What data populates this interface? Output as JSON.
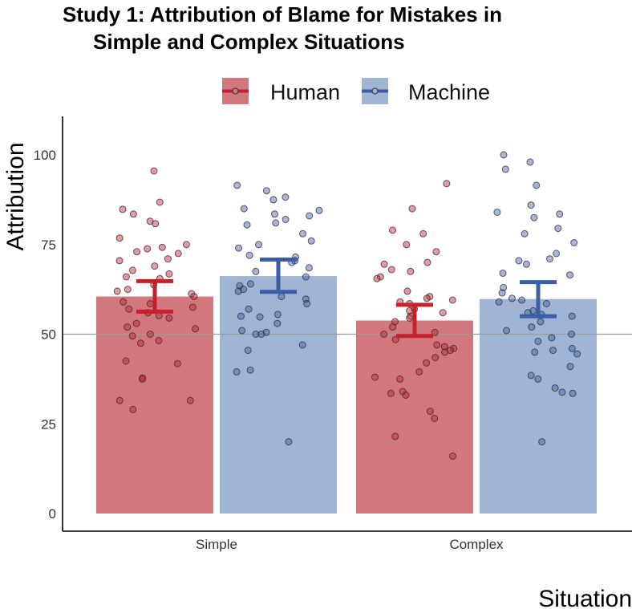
{
  "chart_data": {
    "type": "bar",
    "title": "Study 1: Attribution of Blame for Mistakes in Simple and Complex Situations",
    "title_lines": [
      "Study 1: Attribution of Blame for Mistakes in",
      "Simple and Complex Situations"
    ],
    "xlabel": "Situation",
    "ylabel": "Attribution",
    "categories": [
      "Simple",
      "Complex"
    ],
    "ylim": [
      0,
      100
    ],
    "yticks": [
      0,
      25,
      50,
      75,
      100
    ],
    "reference_line": 50,
    "legend_position": "top",
    "grid": false,
    "series": [
      {
        "name": "Human",
        "color": "#C8202A",
        "fill": "#D2777E",
        "values": [
          60.5,
          53.8
        ],
        "error_low": [
          56.3,
          49.5
        ],
        "error_high": [
          64.8,
          58.2
        ],
        "points": [
          [
            95.5,
            86.8,
            84.8,
            83.5,
            81.5,
            80.8,
            76.8,
            75.0,
            74.2,
            73.8,
            73.0,
            72.5,
            71.0,
            70.5,
            69.0,
            67.8,
            66.8,
            66.0,
            65.5,
            63.8,
            62.5,
            62.0,
            61.3,
            60.5,
            59.0,
            58.5,
            57.5,
            57.0,
            56.0,
            55.2,
            54.5,
            53.0,
            52.0,
            51.5,
            50.0,
            49.5,
            48.2,
            47.5,
            42.5,
            41.8,
            37.8,
            37.5,
            31.5,
            31.5,
            29.0
          ],
          [
            92.0,
            85.0,
            79.0,
            78.0,
            75.0,
            73.0,
            70.0,
            69.5,
            68.0,
            67.5,
            66.0,
            65.5,
            62.0,
            60.5,
            60.0,
            59.5,
            59.0,
            58.5,
            57.0,
            56.5,
            56.0,
            55.0,
            54.5,
            53.5,
            52.0,
            50.5,
            50.0,
            48.5,
            47.0,
            46.5,
            46.0,
            45.5,
            45.0,
            43.5,
            42.0,
            39.5,
            38.0,
            37.5,
            34.0,
            33.5,
            33.0,
            28.5,
            26.5,
            21.5,
            16.0
          ]
        ]
      },
      {
        "name": "Machine",
        "color": "#3A5DA8",
        "fill": "#A0B4D6",
        "values": [
          66.2,
          59.8
        ],
        "error_low": [
          61.8,
          55.0
        ],
        "error_high": [
          70.8,
          64.5
        ],
        "points": [
          [
            91.5,
            90.0,
            88.2,
            87.5,
            85.0,
            84.5,
            83.5,
            83.0,
            82.0,
            81.0,
            80.5,
            78.0,
            76.0,
            75.0,
            74.0,
            72.0,
            71.5,
            70.5,
            70.0,
            68.5,
            67.5,
            66.0,
            64.0,
            63.5,
            62.5,
            62.0,
            60.5,
            59.8,
            58.5,
            57.0,
            55.5,
            55.0,
            54.8,
            53.0,
            51.0,
            50.5,
            50.0,
            50.0,
            47.0,
            45.5,
            40.0,
            39.5,
            20.0
          ],
          [
            100.0,
            98.0,
            96.0,
            91.5,
            86.0,
            84.0,
            83.5,
            82.5,
            79.5,
            78.0,
            75.5,
            72.5,
            71.0,
            70.5,
            69.5,
            67.0,
            66.5,
            63.0,
            61.5,
            60.0,
            59.5,
            59.0,
            58.5,
            56.5,
            56.0,
            55.5,
            55.0,
            53.5,
            52.0,
            51.0,
            50.0,
            49.0,
            48.0,
            46.0,
            45.5,
            45.0,
            44.5,
            41.0,
            38.5,
            37.5,
            35.0,
            33.8,
            33.5,
            20.0
          ]
        ]
      }
    ]
  }
}
